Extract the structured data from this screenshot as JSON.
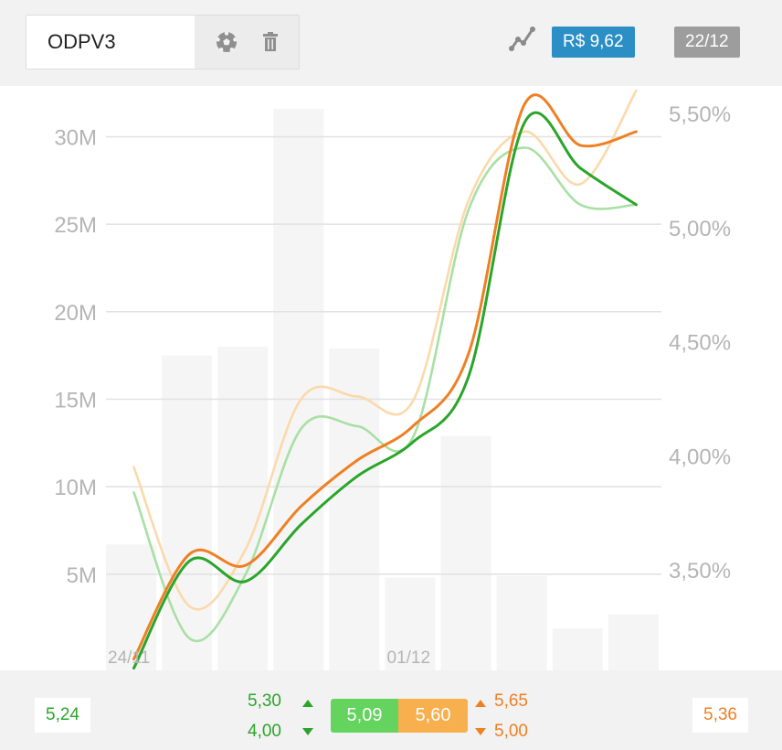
{
  "header": {
    "ticker_value": "ODPV3",
    "soccer_icon": "soccer-ball-icon",
    "trash_icon": "trash-icon",
    "chart_type_icon": "line-chart-icon",
    "price_badge": "R$ 9,62",
    "date_badge": "22/12"
  },
  "colors": {
    "accent_blue": "#2b8fc6",
    "green": "#2aa52a",
    "orange": "#ef7f23",
    "light_green": "#a8e0a3",
    "light_orange": "#fbd9ab",
    "bars": "#f5f5f5",
    "grid": "#e1e1e1",
    "axis_text": "#b5b5b5"
  },
  "chart_data": {
    "type": "bar+line",
    "left_axis": {
      "ticks": [
        "5M",
        "10M",
        "15M",
        "20M",
        "25M",
        "30M"
      ],
      "values": [
        5,
        10,
        15,
        20,
        25,
        30
      ],
      "ylim": [
        -0.5,
        32.9
      ]
    },
    "right_axis": {
      "ticks": [
        "3,50%",
        "4,00%",
        "4,50%",
        "5,00%",
        "5,50%"
      ],
      "values": [
        3.5,
        4.0,
        4.5,
        5.0,
        5.5
      ],
      "ylim": [
        3.06,
        5.62
      ]
    },
    "x_labels": [
      {
        "index": 0,
        "label": "24/11"
      },
      {
        "index": 5,
        "label": "01/12"
      }
    ],
    "volume_bars": [
      6.7,
      17.5,
      18.0,
      31.6,
      17.9,
      4.8,
      12.9,
      4.9,
      1.9,
      2.7
    ],
    "series": [
      {
        "color": "green",
        "values": [
          3.07,
          3.54,
          3.45,
          3.7,
          3.91,
          4.06,
          4.35,
          5.46,
          5.26,
          5.1
        ]
      },
      {
        "color": "orange",
        "values": [
          3.11,
          3.57,
          3.52,
          3.78,
          3.98,
          4.13,
          4.45,
          5.54,
          5.36,
          5.42
        ]
      },
      {
        "color": "light_green",
        "values": [
          3.84,
          3.2,
          3.48,
          4.12,
          4.13,
          4.08,
          5.08,
          5.35,
          5.1,
          5.1
        ]
      },
      {
        "color": "light_orange",
        "values": [
          3.95,
          3.34,
          3.59,
          4.25,
          4.26,
          4.24,
          5.12,
          5.42,
          5.19,
          5.6
        ]
      }
    ]
  },
  "footer": {
    "left_value": "5,24",
    "green_high": "5,30",
    "green_low": "4,00",
    "green_current": "5,09",
    "orange_current": "5,60",
    "orange_high": "5,65",
    "orange_low": "5,00",
    "right_value": "5,36"
  }
}
